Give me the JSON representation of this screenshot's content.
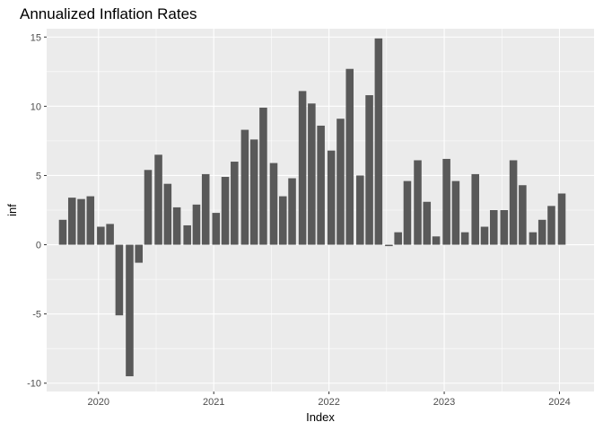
{
  "chart_data": {
    "type": "bar",
    "title": "Annualized Inflation Rates",
    "xlabel": "Index",
    "ylabel": "inf",
    "ylim": [
      -10.6,
      15.6
    ],
    "y_ticks": [
      -10,
      -5,
      0,
      5,
      10,
      15
    ],
    "y_tick_labels": [
      "-10",
      "-5",
      "0",
      "5",
      "10",
      "15"
    ],
    "x_ticks": [
      2020,
      2021,
      2022,
      2023,
      2024
    ],
    "x_tick_labels": [
      "2020",
      "2021",
      "2022",
      "2023",
      "2024"
    ],
    "xlim": [
      2019.55,
      2024.3
    ],
    "x": [
      2019.69,
      2019.77,
      2019.85,
      2019.93,
      2020.02,
      2020.1,
      2020.18,
      2020.27,
      2020.35,
      2020.43,
      2020.52,
      2020.6,
      2020.68,
      2020.77,
      2020.85,
      2020.93,
      2021.02,
      2021.1,
      2021.18,
      2021.27,
      2021.35,
      2021.43,
      2021.52,
      2021.6,
      2021.68,
      2021.77,
      2021.85,
      2021.93,
      2022.02,
      2022.1,
      2022.18,
      2022.27,
      2022.35,
      2022.43,
      2022.52,
      2022.6,
      2022.68,
      2022.77,
      2022.85,
      2022.93,
      2023.02,
      2023.1,
      2023.18,
      2023.27,
      2023.35,
      2023.43,
      2023.52,
      2023.6,
      2023.68,
      2023.77,
      2023.85,
      2023.93,
      2024.02
    ],
    "values": [
      1.8,
      3.4,
      3.3,
      3.5,
      1.3,
      1.5,
      -5.1,
      -9.5,
      -1.3,
      5.4,
      6.5,
      4.4,
      2.7,
      1.4,
      2.9,
      5.1,
      2.3,
      4.9,
      6.0,
      8.3,
      7.6,
      9.9,
      5.9,
      3.5,
      4.8,
      11.1,
      10.2,
      8.6,
      6.8,
      9.1,
      12.7,
      5.0,
      10.8,
      14.9,
      -0.1,
      0.9,
      4.6,
      6.1,
      3.1,
      0.6,
      6.2,
      4.6,
      0.9,
      5.1,
      1.3,
      2.5,
      2.5,
      6.1,
      4.3,
      0.9,
      1.8,
      2.8,
      3.7
    ],
    "bar_color": "#595959",
    "panel_color": "#ebebeb",
    "grid": true,
    "legend": false
  }
}
